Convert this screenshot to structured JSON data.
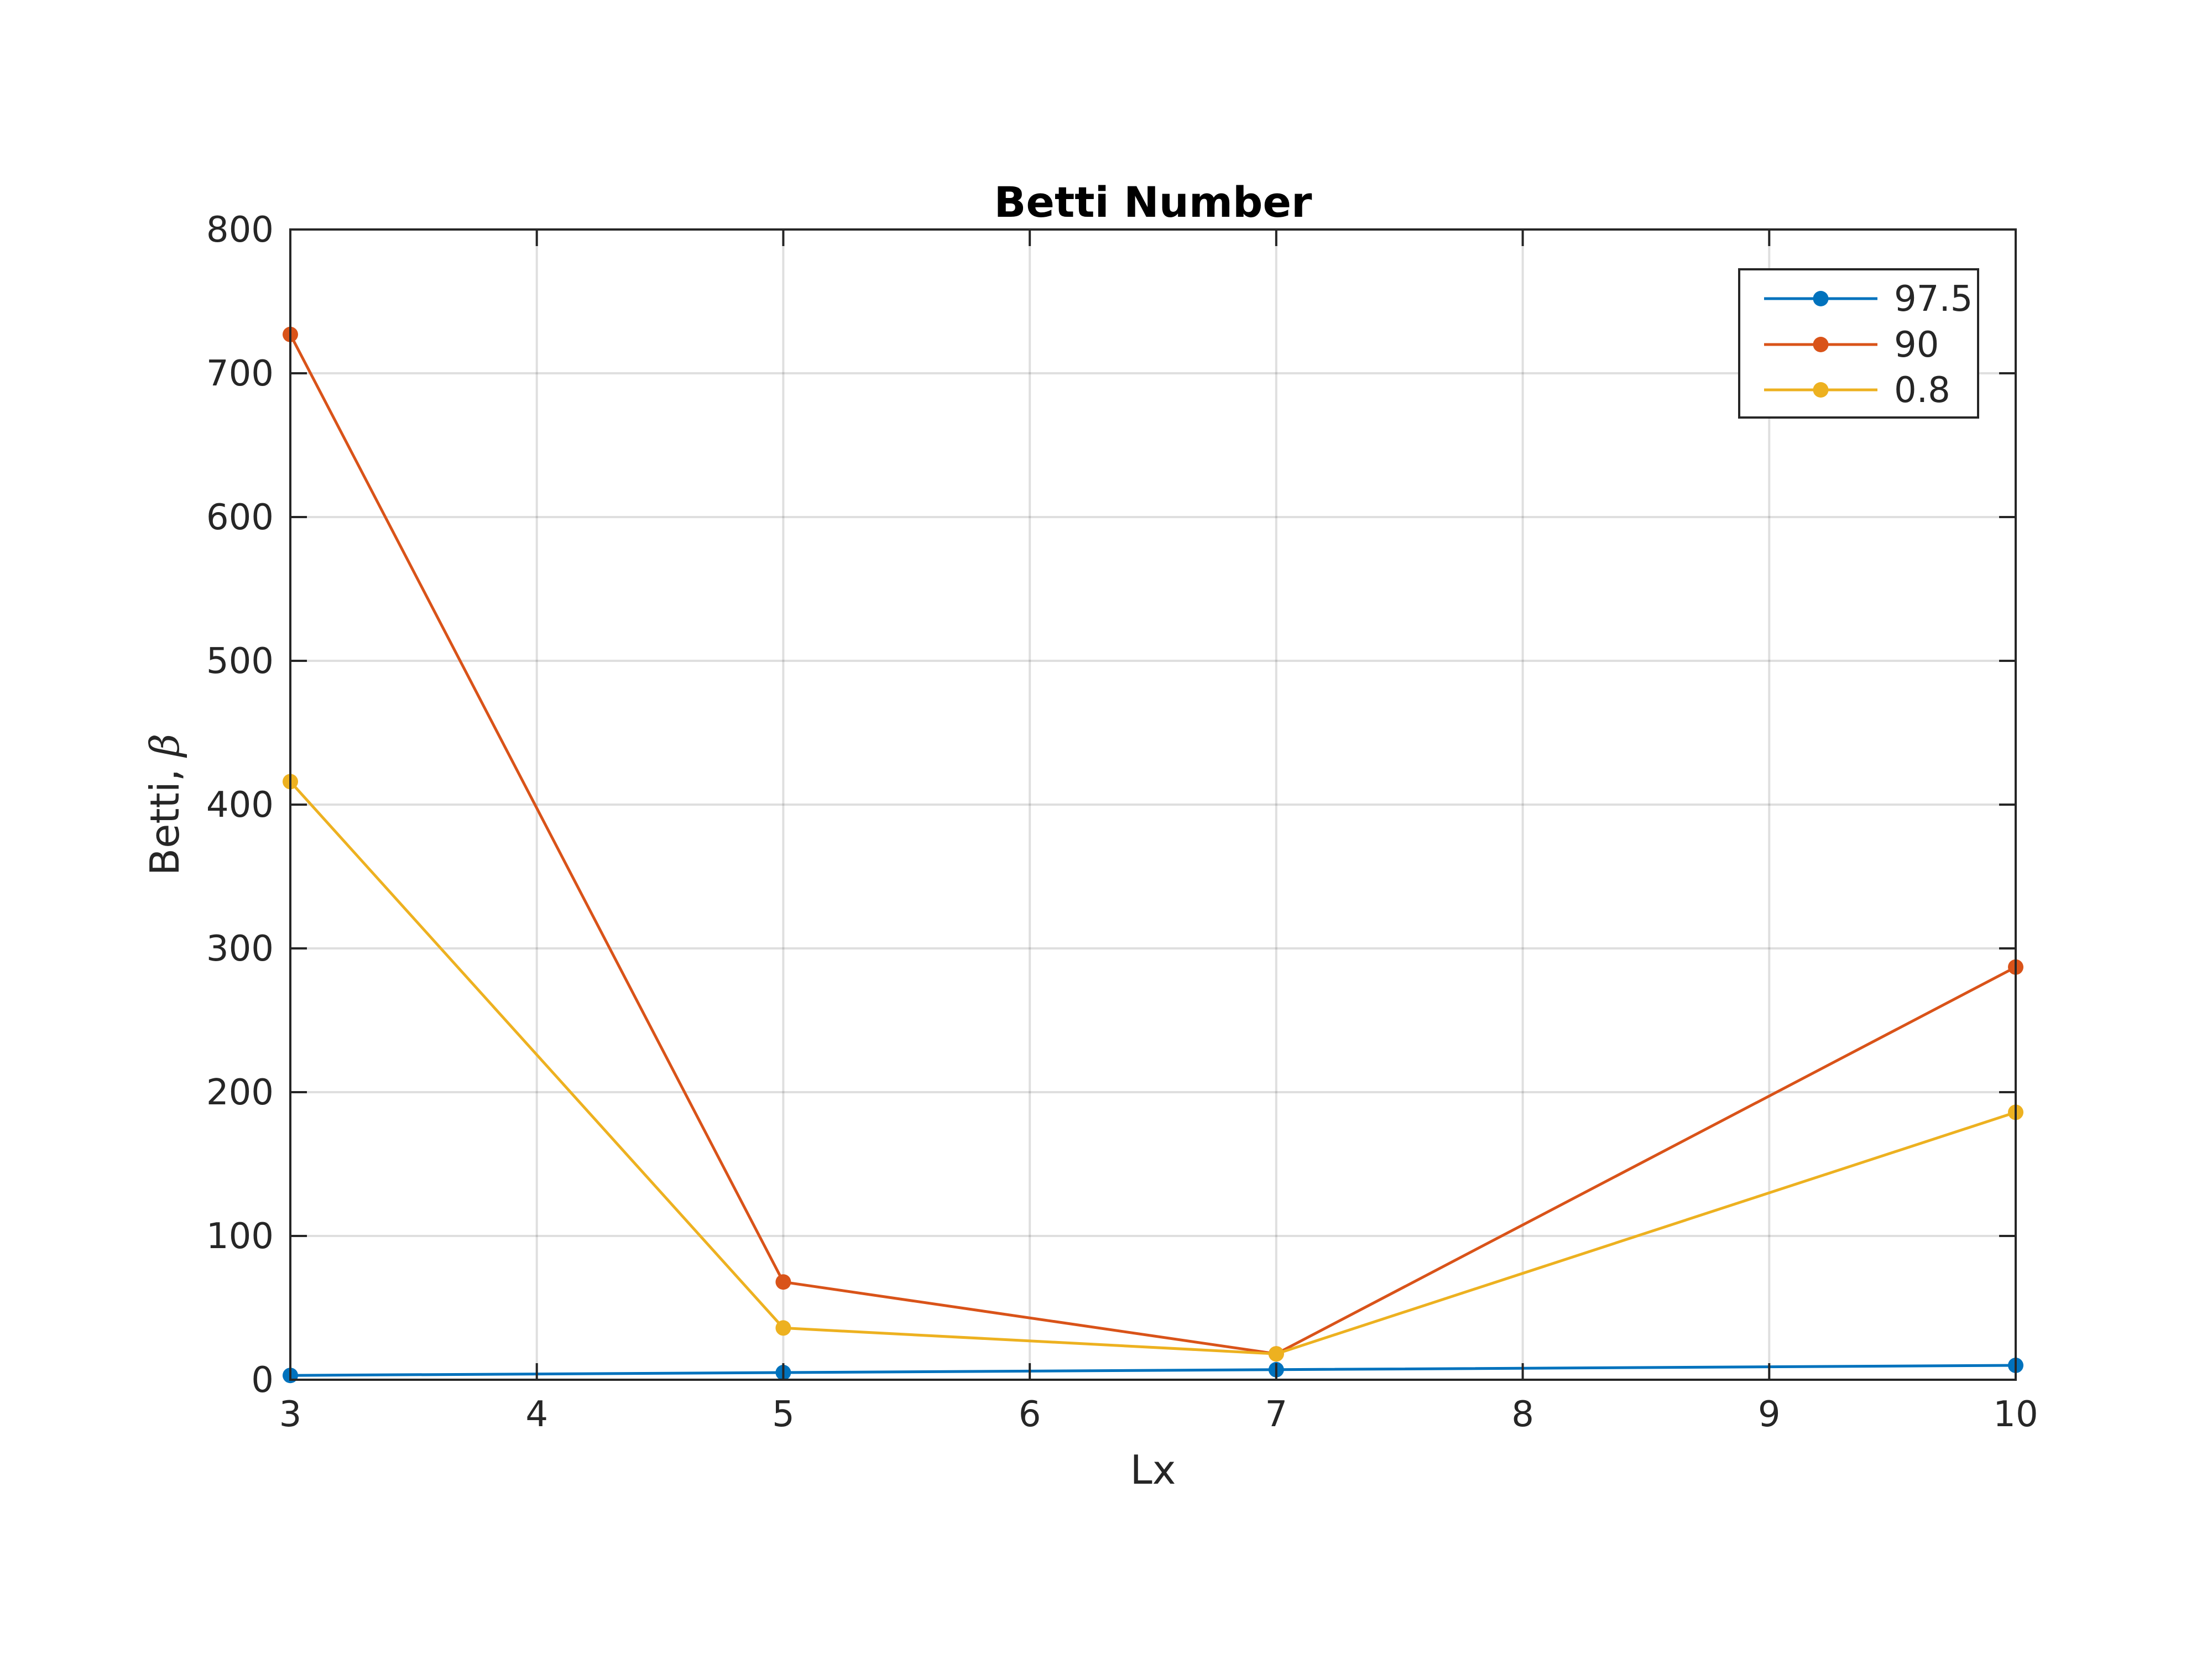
{
  "chart_data": {
    "type": "line",
    "title": "Betti Number",
    "xlabel": "Lx",
    "ylabel": "Betti,",
    "ylabel_symbol": "β",
    "xlim": [
      3,
      10
    ],
    "ylim": [
      0,
      800
    ],
    "x_ticks": [
      "3",
      "4",
      "5",
      "6",
      "7",
      "8",
      "9",
      "10"
    ],
    "y_ticks": [
      "0",
      "100",
      "200",
      "300",
      "400",
      "500",
      "600",
      "700",
      "800"
    ],
    "grid": true,
    "legend_position": "top-right",
    "x": [
      3,
      5,
      7,
      10
    ],
    "series": [
      {
        "name": "97.5",
        "color": "#0072BD",
        "values": [
          3,
          5,
          7,
          10
        ]
      },
      {
        "name": "90",
        "color": "#D95319",
        "values": [
          727,
          68,
          18,
          287
        ]
      },
      {
        "name": "0.8",
        "color": "#EDB120",
        "values": [
          416,
          36,
          18,
          186
        ]
      }
    ]
  }
}
